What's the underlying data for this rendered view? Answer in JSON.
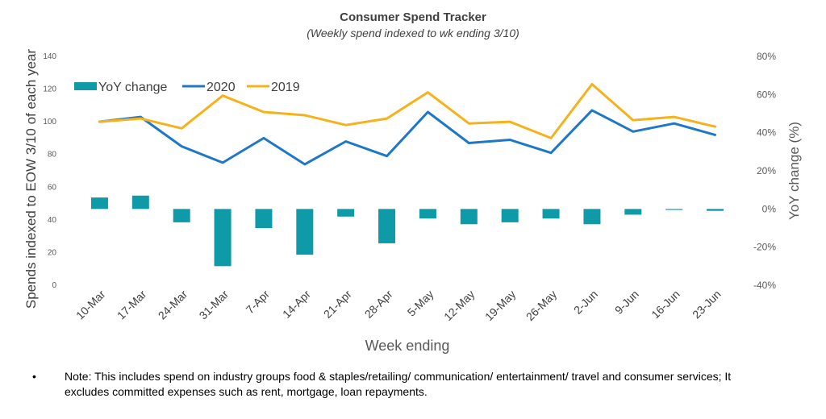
{
  "chart_data": {
    "type": "bar+line",
    "title": "Consumer Spend Tracker",
    "subtitle": "(Weekly spend indexed to wk ending 3/10)",
    "xlabel": "Week ending",
    "ylabel_left": "Spends indexed to EOW 3/10 of each year",
    "ylabel_right": "YoY change (%)",
    "categories": [
      "10-Mar",
      "17-Mar",
      "24-Mar",
      "31-Mar",
      "7-Apr",
      "14-Apr",
      "21-Apr",
      "28-Apr",
      "5-May",
      "12-May",
      "19-May",
      "26-May",
      "2-Jun",
      "9-Jun",
      "16-Jun",
      "23-Jun"
    ],
    "ylim_left": [
      0,
      140
    ],
    "yticks_left": [
      "0",
      "20",
      "40",
      "60",
      "80",
      "100",
      "120",
      "140"
    ],
    "ylim_right": [
      -40,
      80
    ],
    "yticks_right": [
      "-40%",
      "-20%",
      "0%",
      "20%",
      "40%",
      "60%",
      "80%"
    ],
    "legend_position": "top-left",
    "grid": false,
    "series": [
      {
        "name": "YoY change",
        "type": "bar",
        "axis": "right",
        "color": "#0F9AA8",
        "values": [
          6,
          7,
          -7,
          -30,
          -10,
          -24,
          -4,
          -18,
          -5,
          -8,
          -7,
          -5,
          -8,
          -3,
          -0.5,
          -1
        ]
      },
      {
        "name": "2020",
        "type": "line",
        "axis": "left",
        "color": "#1F77C8",
        "values": [
          100,
          103,
          85,
          75,
          90,
          74,
          88,
          79,
          106,
          87,
          89,
          81,
          107,
          94,
          99,
          92
        ]
      },
      {
        "name": "2019",
        "type": "line",
        "axis": "left",
        "color": "#F5B21B",
        "values": [
          100,
          102,
          96,
          116,
          106,
          104,
          98,
          102,
          118,
          99,
          100,
          90,
          123,
          101,
          103,
          97
        ]
      }
    ]
  },
  "note": {
    "bullet": "•",
    "text": "Note: This includes spend on industry groups food & staples/retailing/ communication/ entertainment/ travel and consumer services; It excludes committed expenses such as rent, mortgage, loan repayments."
  }
}
